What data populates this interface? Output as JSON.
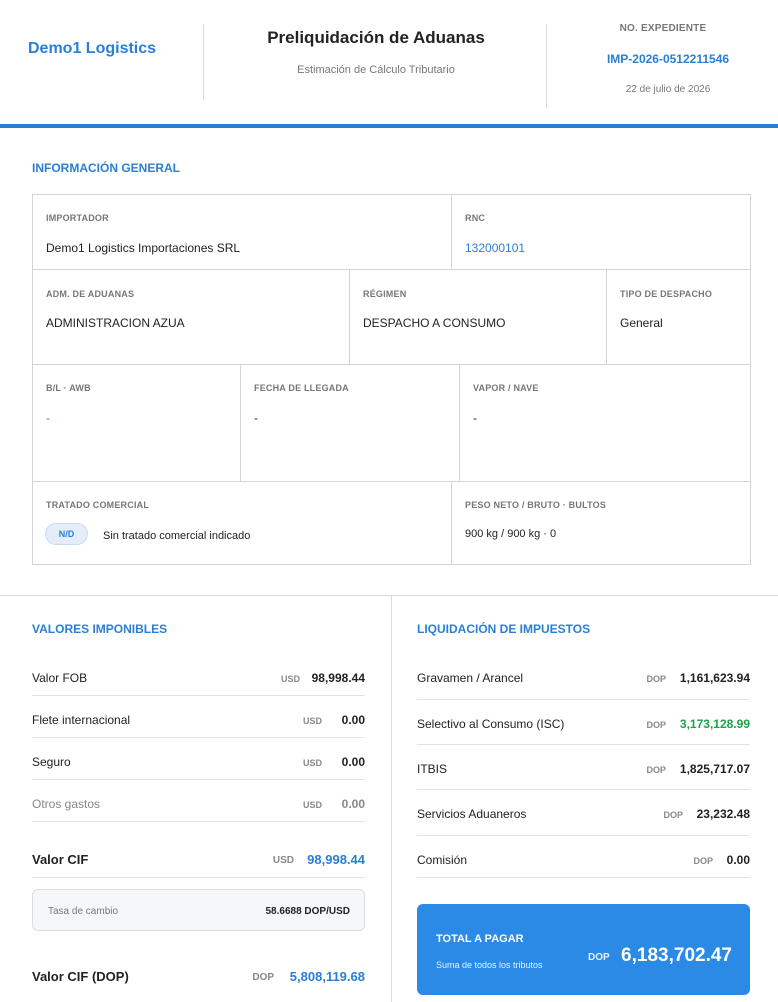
{
  "header": {
    "brand": "Demo1 Logistics",
    "title": "Preliquidación de Aduanas",
    "subtitle": "Estimación de Cálculo Tributario",
    "expediente_label": "NO. EXPEDIENTE",
    "expediente_number": "IMP-2026-0512211546",
    "date": "22 de julio de 2026"
  },
  "colors": {
    "accent": "#2a7fd4",
    "green": "#1aa34a",
    "total_bg": "#2a8ae6"
  },
  "general": {
    "heading": "INFORMACIÓN GENERAL",
    "importador": {
      "label": "IMPORTADOR",
      "value": "Demo1 Logistics Importaciones SRL"
    },
    "rnc": {
      "label": "RNC",
      "value": "132000101"
    },
    "adm": {
      "label": "ADM. DE ADUANAS",
      "value": "ADMINISTRACION AZUA"
    },
    "regimen": {
      "label": "RÉGIMEN",
      "value": "DESPACHO A CONSUMO"
    },
    "tipo": {
      "label": "TIPO DE DESPACHO",
      "value": "General"
    },
    "bl": {
      "label": "B/L · AWB",
      "value": "-"
    },
    "fecha": {
      "label": "FECHA DE LLEGADA",
      "value": "-"
    },
    "vapor": {
      "label": "VAPOR / NAVE",
      "value": "-"
    },
    "tratado": {
      "label": "TRATADO COMERCIAL",
      "badge": "N/D",
      "value": "Sin tratado comercial indicado"
    },
    "peso": {
      "label": "PESO NETO / BRUTO · BULTOS",
      "value": "900 kg / 900 kg · 0"
    }
  },
  "valores": {
    "heading": "VALORES IMPONIBLES",
    "rows": [
      {
        "label": "Valor FOB",
        "currency": "USD",
        "amount": "98,998.44"
      },
      {
        "label": "Flete internacional",
        "currency": "USD",
        "amount": "0.00"
      },
      {
        "label": "Seguro",
        "currency": "USD",
        "amount": "0.00"
      },
      {
        "label": "Otros gastos",
        "currency": "USD",
        "amount": "0.00"
      }
    ],
    "cif": {
      "label": "Valor CIF",
      "currency": "USD",
      "amount": "98,998.44"
    },
    "rate": {
      "label": "Tasa de cambio",
      "value": "58.6688 DOP/USD"
    },
    "cif_dop": {
      "label": "Valor CIF (DOP)",
      "currency": "DOP",
      "amount": "5,808,119.68"
    }
  },
  "impuestos": {
    "heading": "LIQUIDACIÓN DE IMPUESTOS",
    "rows": [
      {
        "label": "Gravamen / Arancel",
        "currency": "DOP",
        "amount": "1,161,623.94"
      },
      {
        "label": "Selectivo al Consumo (ISC)",
        "currency": "DOP",
        "amount": "3,173,128.99"
      },
      {
        "label": "ITBIS",
        "currency": "DOP",
        "amount": "1,825,717.07"
      },
      {
        "label": "Servicios Aduaneros",
        "currency": "DOP",
        "amount": "23,232.48"
      },
      {
        "label": "Comisión",
        "currency": "DOP",
        "amount": "0.00"
      }
    ],
    "total": {
      "label": "TOTAL A PAGAR",
      "sublabel": "Suma de todos los tributos",
      "currency": "DOP",
      "amount": "6,183,702.47"
    }
  }
}
